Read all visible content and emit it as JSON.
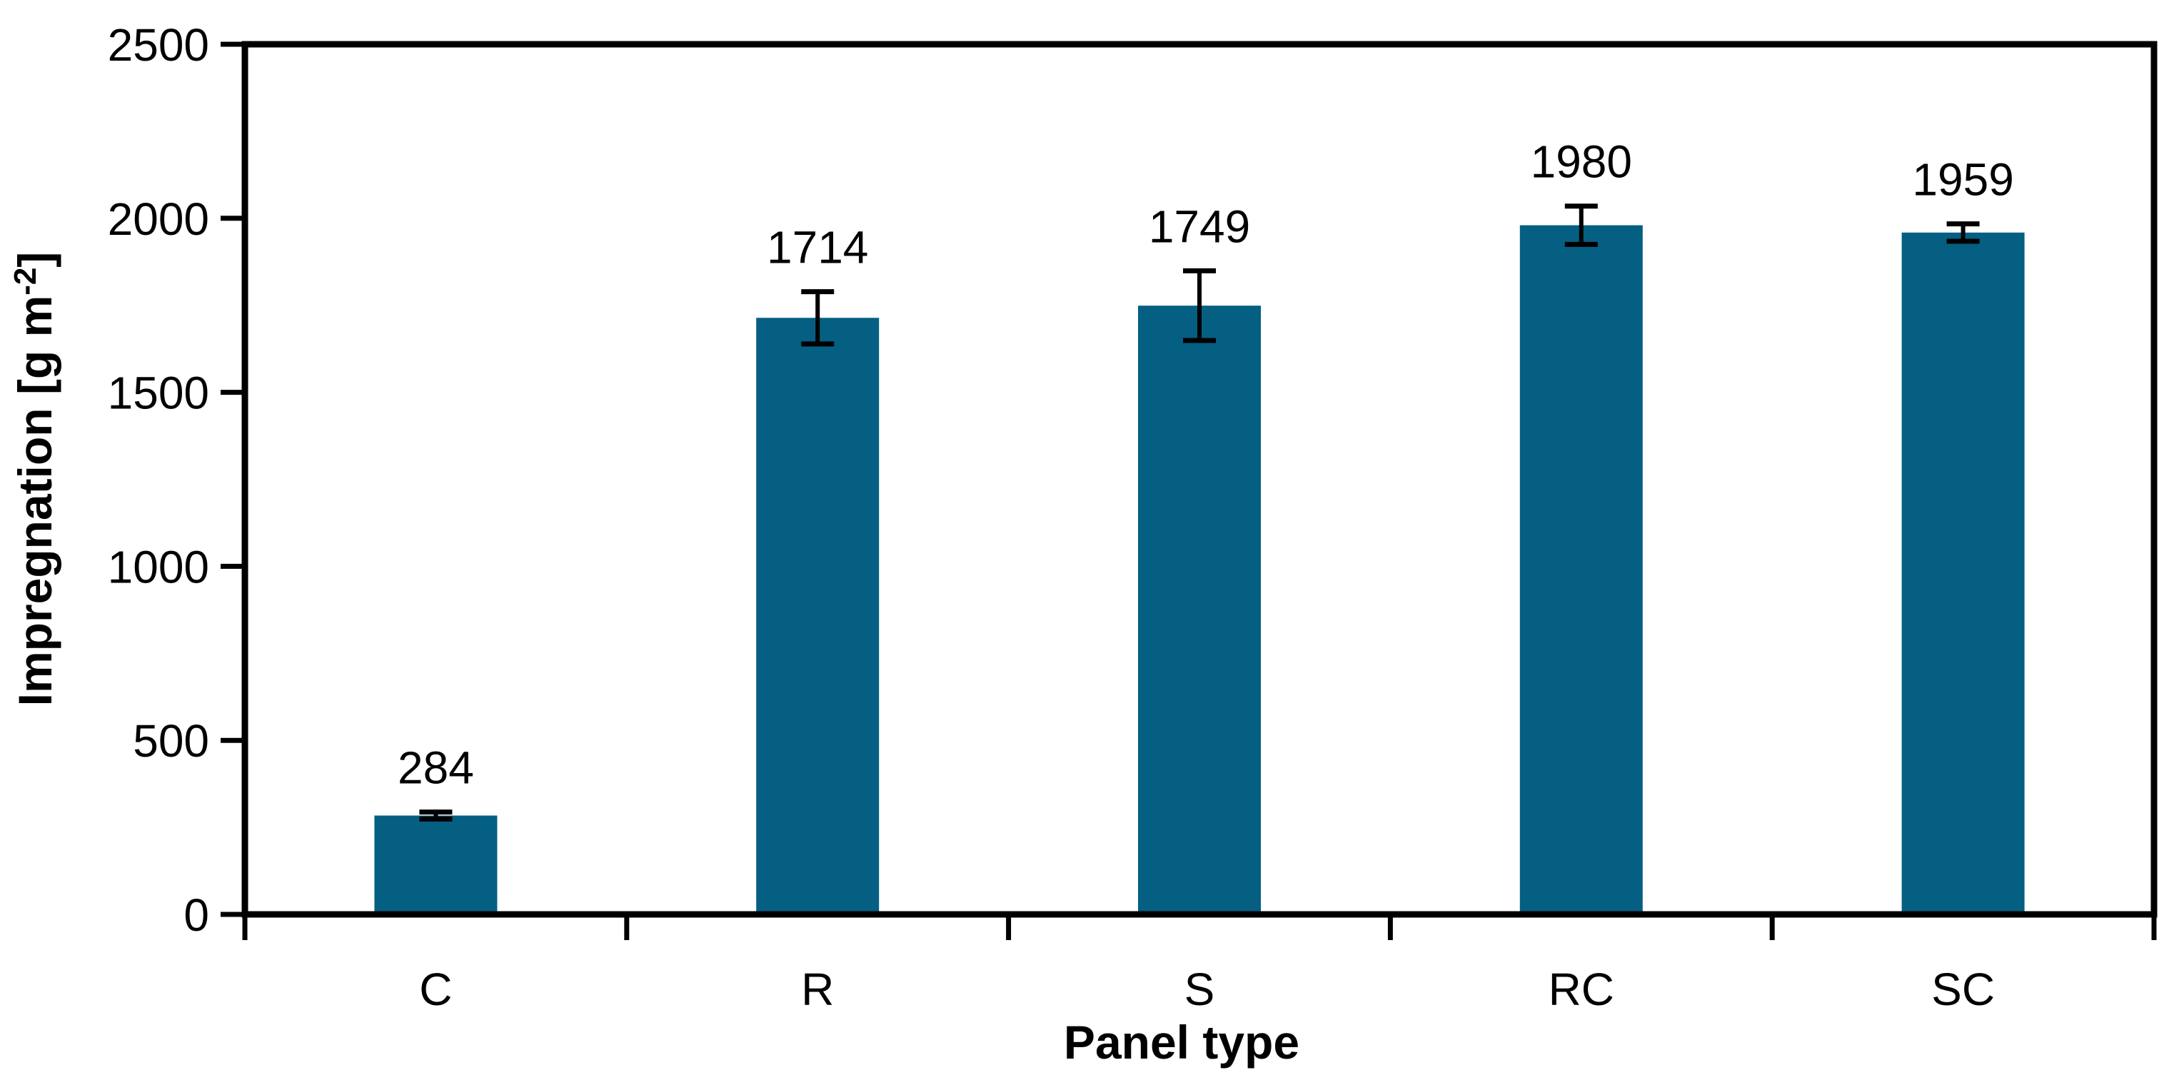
{
  "chart_data": {
    "type": "bar",
    "title": "",
    "categories": [
      "C",
      "R",
      "S",
      "RC",
      "SC"
    ],
    "series": [
      {
        "name": "Impregnation",
        "values": [
          284,
          1714,
          1749,
          1980,
          1959
        ],
        "error_bars_plus": [
          10,
          75,
          100,
          55,
          25
        ],
        "error_bars_minus": [
          10,
          75,
          100,
          55,
          25
        ]
      }
    ],
    "data_labels": [
      "284",
      "1714",
      "1749",
      "1980",
      "1959"
    ],
    "xlabel": "Panel type",
    "ylabel": "Impregnation [g m⁻²]",
    "ylabel_rich": {
      "main": "Impregnation [g m",
      "sup": "-2",
      "end": "]"
    },
    "yticks": [
      "0",
      "500",
      "1000",
      "1500",
      "2000",
      "2500"
    ],
    "ylim": [
      0,
      2500
    ],
    "grid": false,
    "legend_position": "none",
    "colors": {
      "bar_fill": "#045F83",
      "axis_line": "#000000",
      "error_bar": "#000000",
      "text": "#000000",
      "background": "#FFFFFF"
    }
  }
}
